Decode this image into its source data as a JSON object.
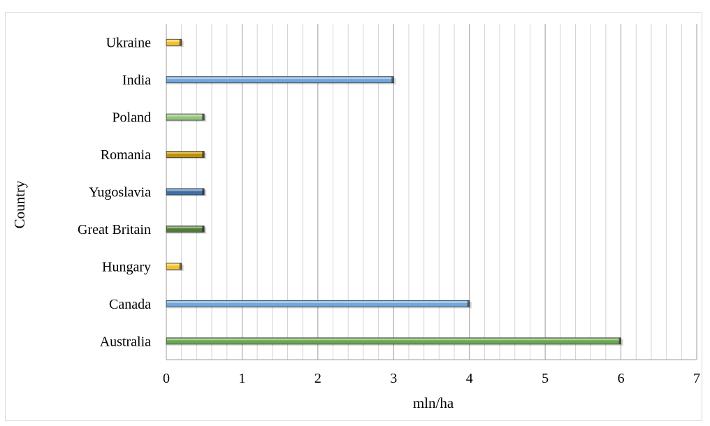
{
  "chart_data": {
    "type": "bar",
    "orientation": "horizontal",
    "title": "",
    "xlabel": "mln/ha",
    "ylabel": "Country",
    "xlim": [
      0,
      7
    ],
    "xticks": [
      "0",
      "1",
      "2",
      "3",
      "4",
      "5",
      "6",
      "7"
    ],
    "grid": true,
    "categories": [
      "Ukraine",
      "India",
      "Poland",
      "Romania",
      "Yugoslavia",
      "Great Britain",
      "Hungary",
      "Canada",
      "Australia"
    ],
    "values": [
      0.2,
      3,
      0.5,
      0.5,
      0.5,
      0.5,
      0.2,
      4,
      6
    ],
    "colors": [
      "#f2c12e",
      "#6fa8dc",
      "#93c47d",
      "#bf9000",
      "#3d6fa6",
      "#4f7a38",
      "#f2c12e",
      "#6fa8dc",
      "#6aa84f"
    ]
  }
}
